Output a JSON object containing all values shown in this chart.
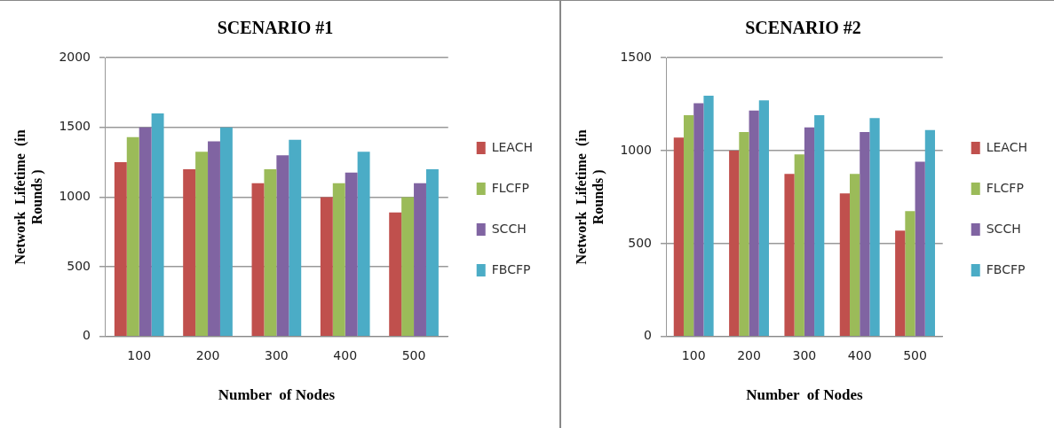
{
  "chart_data": [
    {
      "type": "bar",
      "title": "SCENARIO #1",
      "xlabel": "Number  of Nodes",
      "ylabel": "Network  Lifetime  (in Rounds )",
      "categories": [
        "100",
        "200",
        "300",
        "400",
        "500"
      ],
      "series": [
        {
          "name": "LEACH",
          "color": "#c0504d",
          "values": [
            1250,
            1200,
            1100,
            1000,
            890
          ]
        },
        {
          "name": "FLCFP",
          "color": "#9bbb59",
          "values": [
            1430,
            1325,
            1200,
            1100,
            1000
          ]
        },
        {
          "name": "SCCH",
          "color": "#8064a2",
          "values": [
            1500,
            1400,
            1300,
            1175,
            1100
          ]
        },
        {
          "name": "FBCFP",
          "color": "#4bacc6",
          "values": [
            1600,
            1500,
            1410,
            1325,
            1200
          ]
        }
      ],
      "ylim": [
        0,
        2000
      ],
      "yticks": [
        0,
        500,
        1000,
        1500,
        2000
      ],
      "grid": "y",
      "legend": "right"
    },
    {
      "type": "bar",
      "title": "SCENARIO #2",
      "xlabel": "Number  of Nodes",
      "ylabel": "Network  Lifetime  (in Rounds )",
      "categories": [
        "100",
        "200",
        "300",
        "400",
        "500"
      ],
      "series": [
        {
          "name": "LEACH",
          "color": "#c0504d",
          "values": [
            1070,
            1000,
            875,
            770,
            570
          ]
        },
        {
          "name": "FLCFP",
          "color": "#9bbb59",
          "values": [
            1190,
            1100,
            980,
            875,
            675
          ]
        },
        {
          "name": "SCCH",
          "color": "#8064a2",
          "values": [
            1255,
            1215,
            1125,
            1100,
            940
          ]
        },
        {
          "name": "FBCFP",
          "color": "#4bacc6",
          "values": [
            1295,
            1270,
            1190,
            1175,
            1110
          ]
        }
      ],
      "ylim": [
        0,
        1500
      ],
      "yticks": [
        0,
        500,
        1000,
        1500
      ],
      "grid": "y",
      "legend": "right"
    }
  ]
}
